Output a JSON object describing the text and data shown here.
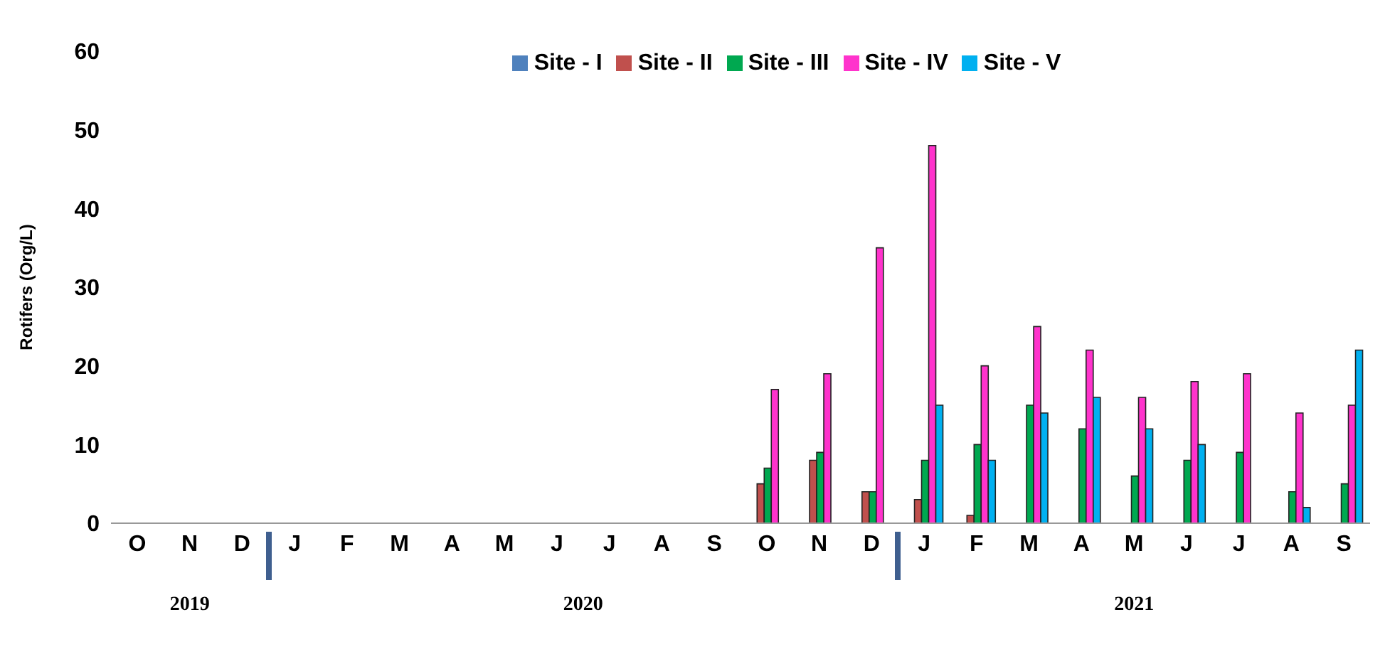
{
  "chart_data": {
    "type": "bar",
    "ylabel": "Rotifers (Org/L)",
    "categories": [
      "O",
      "N",
      "D",
      "J",
      "F",
      "M",
      "A",
      "M",
      "J",
      "J",
      "A",
      "S",
      "O",
      "N",
      "D",
      "J",
      "F",
      "M",
      "A",
      "M",
      "J",
      "J",
      "A",
      "S"
    ],
    "series": [
      {
        "name": "Site - I",
        "color": "#4f81bd",
        "values": [
          0,
          0,
          0,
          0,
          0,
          0,
          0,
          0,
          0,
          0,
          0,
          0,
          0,
          0,
          0,
          0,
          0,
          0,
          0,
          0,
          0,
          0,
          0,
          0
        ]
      },
      {
        "name": "Site - II",
        "color": "#c0504d",
        "values": [
          0,
          0,
          0,
          0,
          0,
          0,
          0,
          0,
          0,
          0,
          0,
          0,
          5,
          8,
          4,
          3,
          1,
          0,
          0,
          0,
          0,
          0,
          0,
          0
        ]
      },
      {
        "name": "Site - III",
        "color": "#00a850",
        "values": [
          0,
          0,
          0,
          0,
          0,
          0,
          0,
          0,
          0,
          0,
          0,
          0,
          7,
          9,
          4,
          8,
          10,
          15,
          12,
          6,
          8,
          9,
          4,
          5
        ]
      },
      {
        "name": "Site - IV",
        "color": "#ff33cc",
        "values": [
          0,
          0,
          0,
          0,
          0,
          0,
          0,
          0,
          0,
          0,
          0,
          0,
          17,
          19,
          35,
          48,
          20,
          25,
          22,
          16,
          18,
          19,
          14,
          15
        ]
      },
      {
        "name": "Site - V",
        "color": "#00b0f0",
        "values": [
          0,
          0,
          0,
          0,
          0,
          0,
          0,
          0,
          0,
          0,
          0,
          0,
          0,
          0,
          0,
          15,
          8,
          14,
          16,
          12,
          10,
          0,
          2,
          22
        ]
      }
    ],
    "ylim": [
      0,
      60
    ],
    "yticks": [
      0,
      10,
      20,
      30,
      40,
      50,
      60
    ],
    "legend": "top",
    "annotations": [
      "2019",
      "2020",
      "2021"
    ]
  }
}
